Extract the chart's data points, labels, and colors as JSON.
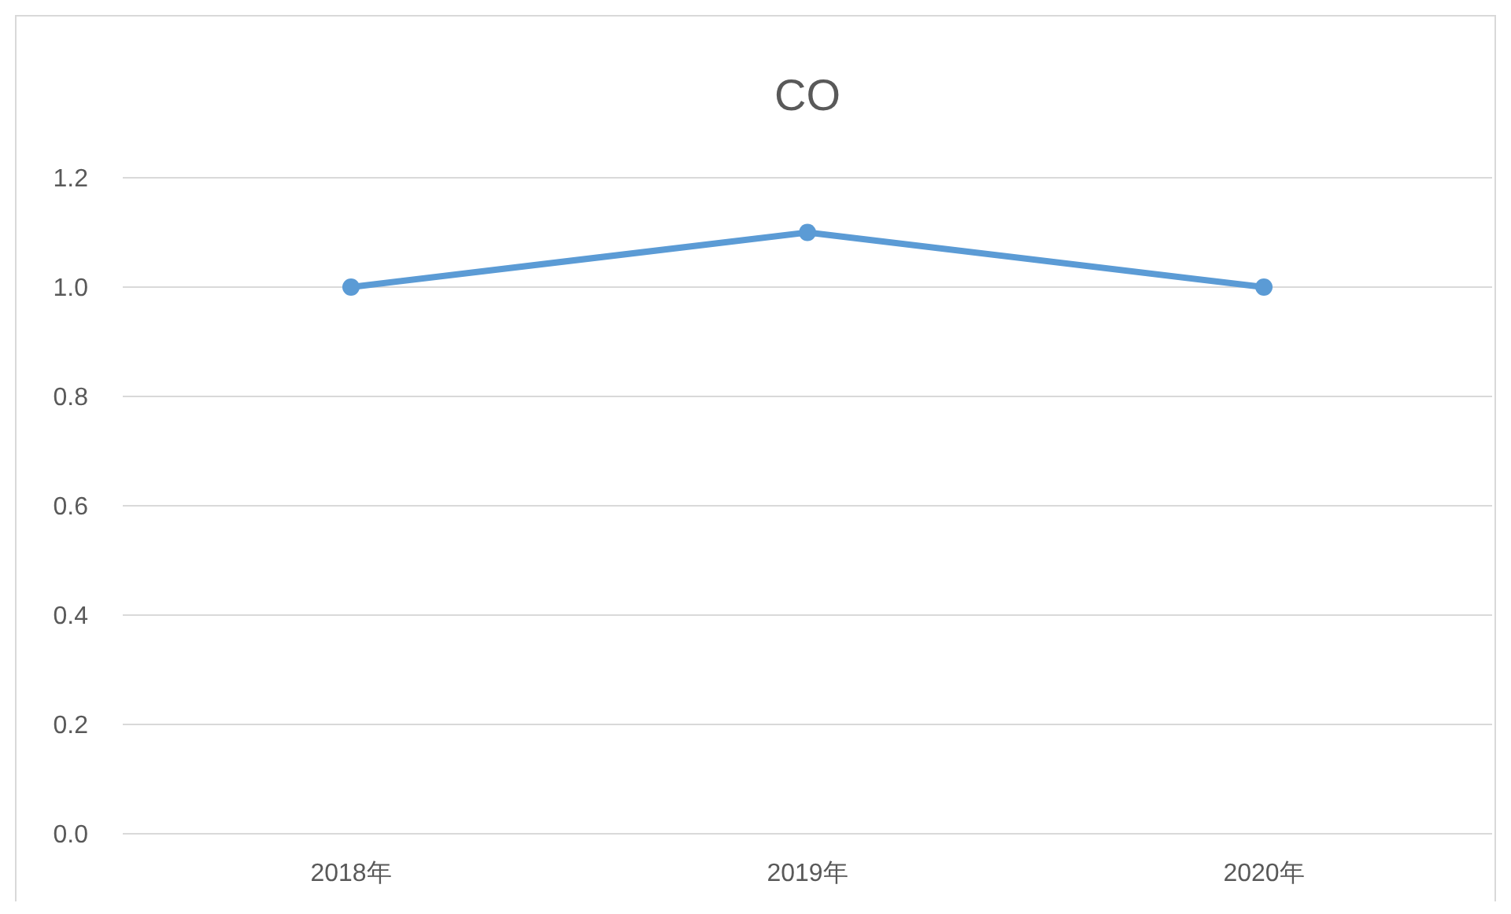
{
  "chart_data": {
    "type": "line",
    "title": "CO",
    "categories": [
      "2018年",
      "2019年",
      "2020年"
    ],
    "series": [
      {
        "color": "#5b9bd5",
        "values": [
          1.0,
          1.1,
          1.0
        ]
      }
    ],
    "ylim": [
      0,
      1.2
    ],
    "yticks": [
      {
        "value": 0,
        "label": "0.0"
      },
      0.2,
      0.4,
      0.6,
      0.8,
      {
        "value": 1,
        "label": "1.0"
      },
      1.2
    ],
    "grid": "y",
    "marker": "circle",
    "line_style": "solid"
  }
}
